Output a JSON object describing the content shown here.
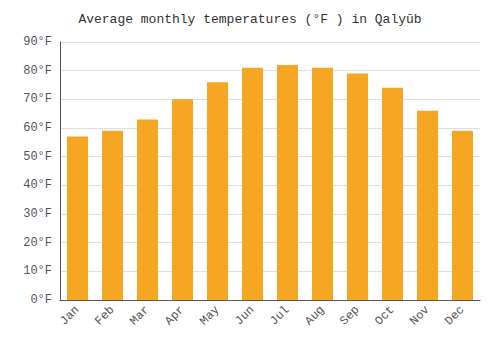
{
  "chart_data": {
    "type": "bar",
    "title": "Average monthly temperatures (°F ) in Qalyūb",
    "categories": [
      "Jan",
      "Feb",
      "Mar",
      "Apr",
      "May",
      "Jun",
      "Jul",
      "Aug",
      "Sep",
      "Oct",
      "Nov",
      "Dec"
    ],
    "values": [
      57,
      59,
      63,
      70,
      76,
      81,
      82,
      81,
      79,
      74,
      66,
      59
    ],
    "color": "#F5A623",
    "ylim": [
      0,
      90
    ],
    "yticks": [
      {
        "value": 0,
        "label": "0°F"
      },
      {
        "value": 10,
        "label": "10°F"
      },
      {
        "value": 20,
        "label": "20°F"
      },
      {
        "value": 30,
        "label": "30°F"
      },
      {
        "value": 40,
        "label": "40°F"
      },
      {
        "value": 50,
        "label": "50°F"
      },
      {
        "value": 60,
        "label": "60°F"
      },
      {
        "value": 70,
        "label": "70°F"
      },
      {
        "value": 80,
        "label": "80°F"
      },
      {
        "value": 90,
        "label": "90°F"
      }
    ],
    "grid": true
  }
}
